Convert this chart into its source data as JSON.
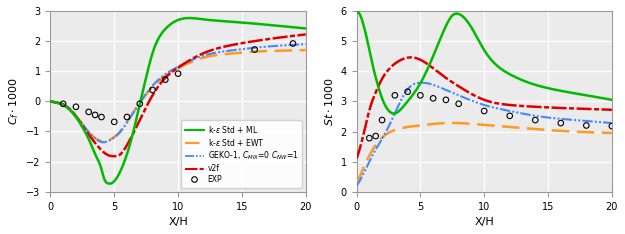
{
  "xlabel": "X/H",
  "xlim": [
    0,
    20
  ],
  "left_ylim": [
    -3,
    3
  ],
  "right_ylim": [
    0,
    6
  ],
  "colors": {
    "ml": "#00bb00",
    "ewt": "#ff9922",
    "geko": "#4488ff",
    "v2f": "#dd0000"
  },
  "cf_ml_x": [
    0.0,
    0.3,
    0.7,
    1.0,
    1.5,
    2.0,
    2.5,
    3.0,
    3.5,
    4.0,
    4.2,
    4.5,
    5.0,
    5.5,
    6.0,
    6.5,
    7.0,
    7.5,
    8.0,
    9.0,
    10.0,
    12.0,
    14.0,
    16.0,
    18.0,
    20.0
  ],
  "cf_ml_y": [
    0.0,
    -0.02,
    -0.07,
    -0.12,
    -0.28,
    -0.52,
    -0.85,
    -1.25,
    -1.75,
    -2.25,
    -2.55,
    -2.72,
    -2.65,
    -2.3,
    -1.75,
    -1.0,
    -0.1,
    0.8,
    1.6,
    2.4,
    2.7,
    2.72,
    2.65,
    2.58,
    2.5,
    2.42
  ],
  "cf_ewt_x": [
    0.0,
    0.5,
    1.0,
    1.5,
    2.0,
    2.5,
    3.0,
    3.5,
    4.0,
    4.5,
    5.0,
    5.5,
    6.0,
    7.0,
    8.0,
    9.0,
    10.0,
    12.0,
    14.0,
    16.0,
    18.0,
    20.0
  ],
  "cf_ewt_y": [
    0.0,
    -0.04,
    -0.1,
    -0.25,
    -0.48,
    -0.75,
    -1.02,
    -1.22,
    -1.32,
    -1.3,
    -1.18,
    -0.98,
    -0.68,
    -0.05,
    0.48,
    0.85,
    1.1,
    1.45,
    1.58,
    1.65,
    1.68,
    1.7
  ],
  "cf_geko_x": [
    0.0,
    0.5,
    1.0,
    1.5,
    2.0,
    2.5,
    3.0,
    3.5,
    4.0,
    4.5,
    5.0,
    5.5,
    6.0,
    7.0,
    8.0,
    9.0,
    10.0,
    12.0,
    14.0,
    16.0,
    18.0,
    20.0
  ],
  "cf_geko_y": [
    0.0,
    -0.04,
    -0.1,
    -0.25,
    -0.48,
    -0.75,
    -1.02,
    -1.22,
    -1.35,
    -1.32,
    -1.2,
    -1.0,
    -0.7,
    -0.05,
    0.52,
    0.9,
    1.15,
    1.52,
    1.68,
    1.78,
    1.85,
    1.9
  ],
  "cf_v2f_x": [
    0.0,
    0.5,
    1.0,
    1.5,
    2.0,
    2.5,
    3.0,
    3.5,
    4.0,
    4.5,
    5.0,
    5.5,
    6.0,
    7.0,
    8.0,
    9.0,
    10.0,
    12.0,
    14.0,
    16.0,
    18.0,
    20.0
  ],
  "cf_v2f_y": [
    0.0,
    -0.04,
    -0.1,
    -0.25,
    -0.5,
    -0.8,
    -1.1,
    -1.38,
    -1.62,
    -1.78,
    -1.82,
    -1.75,
    -1.45,
    -0.62,
    0.2,
    0.78,
    1.12,
    1.6,
    1.85,
    2.0,
    2.12,
    2.22
  ],
  "cf_exp_x": [
    1.0,
    2.0,
    3.0,
    3.5,
    4.0,
    5.0,
    6.0,
    7.0,
    8.0,
    9.0,
    10.0,
    16.0,
    19.0
  ],
  "cf_exp_y": [
    -0.08,
    -0.18,
    -0.35,
    -0.45,
    -0.52,
    -0.68,
    -0.52,
    -0.08,
    0.38,
    0.72,
    0.92,
    1.72,
    1.92
  ],
  "st_ml_x": [
    0.05,
    0.15,
    0.3,
    0.5,
    0.8,
    1.0,
    1.5,
    2.0,
    2.5,
    3.0,
    3.5,
    4.0,
    5.0,
    6.0,
    7.0,
    7.5,
    8.0,
    9.0,
    10.0,
    12.0,
    14.0,
    16.0,
    18.0,
    20.0
  ],
  "st_ml_y": [
    6.0,
    5.95,
    5.85,
    5.6,
    5.1,
    4.7,
    3.8,
    3.1,
    2.7,
    2.6,
    2.75,
    3.0,
    3.6,
    4.5,
    5.5,
    5.85,
    5.9,
    5.45,
    4.7,
    3.9,
    3.55,
    3.35,
    3.2,
    3.05
  ],
  "st_ewt_x": [
    0.0,
    0.3,
    0.6,
    1.0,
    1.5,
    2.0,
    3.0,
    4.0,
    5.0,
    6.0,
    8.0,
    10.0,
    12.0,
    14.0,
    16.0,
    18.0,
    20.0
  ],
  "st_ewt_y": [
    0.3,
    0.55,
    0.85,
    1.2,
    1.55,
    1.8,
    2.05,
    2.15,
    2.2,
    2.25,
    2.28,
    2.22,
    2.15,
    2.08,
    2.02,
    1.98,
    1.95
  ],
  "st_geko_x": [
    0.0,
    0.3,
    0.6,
    1.0,
    1.5,
    2.0,
    2.5,
    3.0,
    3.5,
    4.0,
    5.0,
    6.0,
    7.0,
    8.0,
    10.0,
    12.0,
    14.0,
    16.0,
    18.0,
    20.0
  ],
  "st_geko_y": [
    0.2,
    0.4,
    0.65,
    1.0,
    1.4,
    1.75,
    2.15,
    2.6,
    3.05,
    3.4,
    3.62,
    3.55,
    3.38,
    3.2,
    2.88,
    2.68,
    2.52,
    2.42,
    2.35,
    2.28
  ],
  "st_v2f_x": [
    0.0,
    0.3,
    0.6,
    1.0,
    1.5,
    2.0,
    2.5,
    3.0,
    3.5,
    4.0,
    4.5,
    5.0,
    6.0,
    7.0,
    8.0,
    10.0,
    12.0,
    14.0,
    16.0,
    18.0,
    20.0
  ],
  "st_v2f_y": [
    1.1,
    1.5,
    2.0,
    2.7,
    3.3,
    3.75,
    4.05,
    4.25,
    4.38,
    4.45,
    4.45,
    4.38,
    4.1,
    3.78,
    3.5,
    3.05,
    2.88,
    2.82,
    2.78,
    2.75,
    2.72
  ],
  "st_exp_x": [
    1.0,
    1.5,
    2.0,
    3.0,
    4.0,
    5.0,
    6.0,
    7.0,
    8.0,
    10.0,
    12.0,
    14.0,
    16.0,
    18.0,
    20.0
  ],
  "st_exp_y": [
    1.78,
    1.85,
    2.38,
    3.2,
    3.32,
    3.2,
    3.1,
    3.05,
    2.92,
    2.68,
    2.52,
    2.38,
    2.28,
    2.2,
    2.18
  ],
  "bg_color": "#ebebeb",
  "grid_color": "#ffffff",
  "spine_color": "#999999"
}
